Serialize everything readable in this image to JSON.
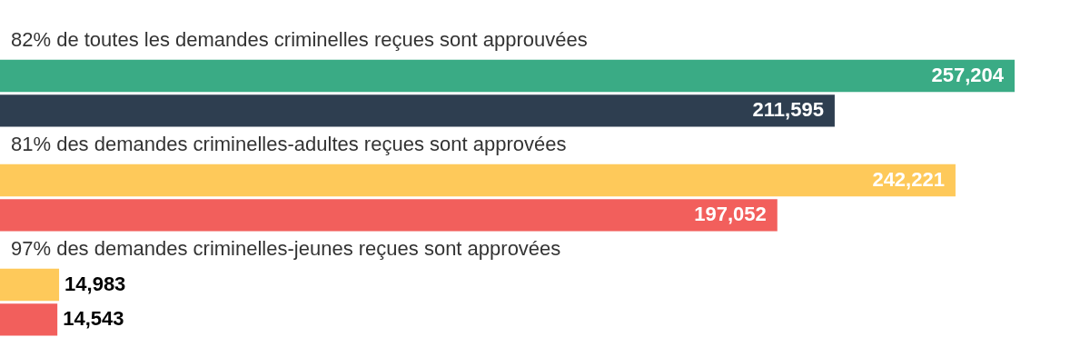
{
  "chart_data": {
    "type": "bar",
    "orientation": "horizontal",
    "categories": [
      null,
      null,
      null,
      null,
      null,
      null
    ],
    "values": [
      257204,
      211595,
      242221,
      197052,
      14983,
      14543
    ],
    "colors": [
      "#3aab85",
      "#2e3e50",
      "#fec95a",
      "#f25f5c",
      "#fec95a",
      "#f25f5c"
    ],
    "value_labels": [
      "257,204",
      "211,595",
      "242,221",
      "197,052",
      "14,983",
      "14,543"
    ],
    "annotations": [
      "82% de toutes les demandes criminelles reçues sont approuvées",
      "81% des demandes criminelles-adultes reçues sont approvées",
      "97% des demandes criminelles-jeunes reçues sont approvées"
    ]
  }
}
